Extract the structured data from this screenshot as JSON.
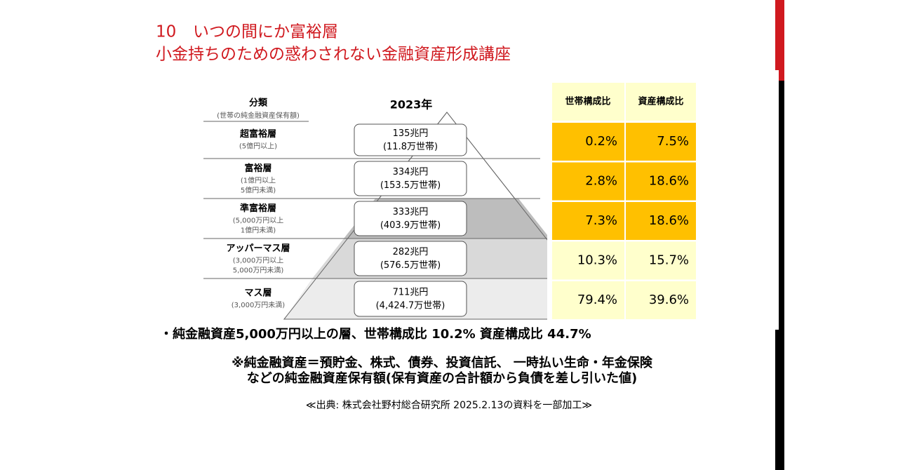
{
  "header": {
    "number": "10",
    "title_lines": [
      "いつの間にか富裕層",
      "小金持ちのための惑わされない金融資産形成講座"
    ]
  },
  "pyramid": {
    "label_header": "分類",
    "label_subheader": "(世帯の純金融資産保有額)",
    "year": "2023年",
    "tiers": [
      {
        "name": "超富裕層",
        "range_lines": [
          "(5億円以上)"
        ],
        "amount": "135兆円",
        "households": "(11.8万世帯)"
      },
      {
        "name": "富裕層",
        "range_lines": [
          "(1億円以上",
          "5億円未満)"
        ],
        "amount": "334兆円",
        "households": "(153.5万世帯)"
      },
      {
        "name": "準富裕層",
        "range_lines": [
          "(5,000万円以上",
          "1億円未満)"
        ],
        "amount": "333兆円",
        "households": "(403.9万世帯)"
      },
      {
        "name": "アッパーマス層",
        "range_lines": [
          "(3,000万円以上",
          "5,000万円未満)"
        ],
        "amount": "282兆円",
        "households": "(576.5万世帯)"
      },
      {
        "name": "マス層",
        "range_lines": [
          "(3,000万円未満)"
        ],
        "amount": "711兆円",
        "households": "(4,424.7万世帯)"
      }
    ]
  },
  "table": {
    "headers": [
      "世帯構成比",
      "資産構成比"
    ],
    "rows": [
      [
        "0.2%",
        "7.5%"
      ],
      [
        "2.8%",
        "18.6%"
      ],
      [
        "7.3%",
        "18.6%"
      ],
      [
        "10.3%",
        "15.7%"
      ],
      [
        "79.4%",
        "39.6%"
      ]
    ]
  },
  "notes": {
    "summary": "・純金融資産5,000万円以上の層、世帯構成比 10.2% 資産構成比 44.7%",
    "definition_lines": [
      "※純金融資産＝預貯金、株式、債券、投資信託、 一時払い生命・年金保険",
      "などの純金融資産保有額(保有資産の合計額から負債を差し引いた値)"
    ],
    "source": "≪出典: 株式会社野村総合研究所 2025.2.13の資料を一部加工≫"
  }
}
